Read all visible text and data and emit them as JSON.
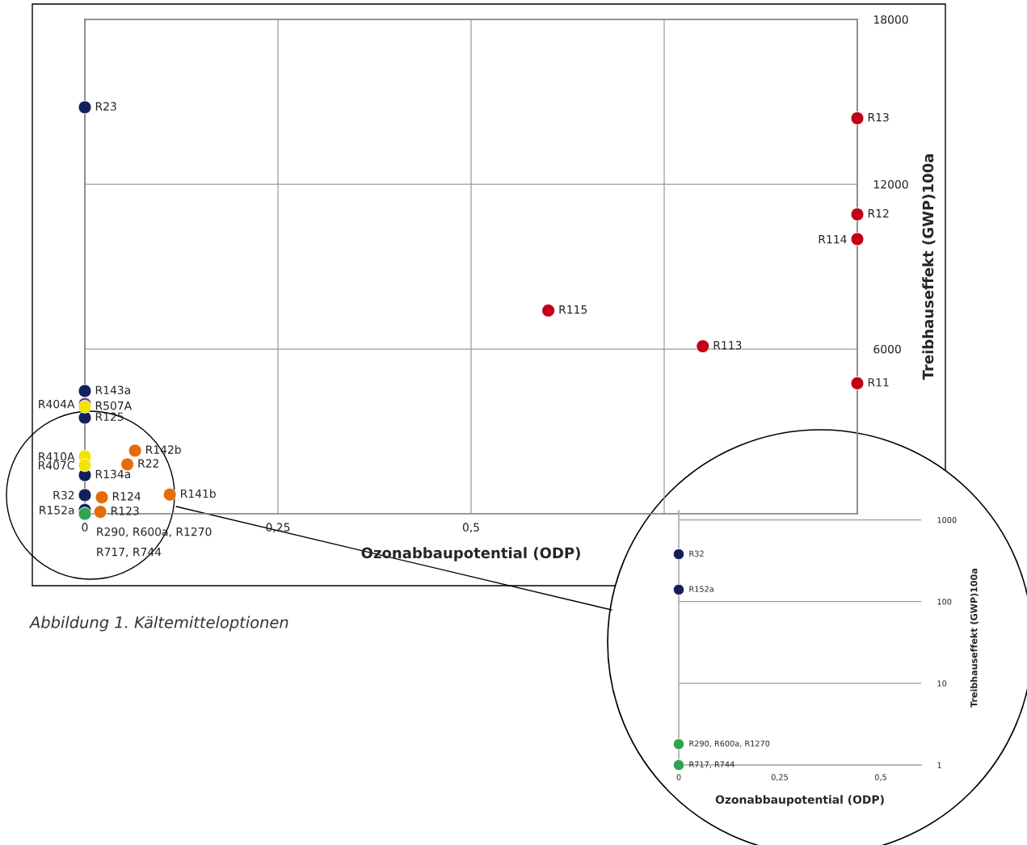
{
  "chart_data": [
    {
      "type": "scatter",
      "xlabel": "Ozonabbaupotential (ODP)",
      "ylabel": "Treibhauseffekt (GWP)100a",
      "xlim": [
        0,
        1
      ],
      "ylim": [
        0,
        18000
      ],
      "xticks": [
        0,
        {
          "value": 0.25,
          "label": "0,25"
        },
        {
          "value": 0.5,
          "label": "0,5"
        },
        {
          "value": 0.75,
          "label": null
        },
        {
          "value": 1,
          "label": null
        }
      ],
      "yticks": [
        {
          "value": 0,
          "label": null
        },
        6000,
        12000,
        18000
      ],
      "grid": true,
      "marker": "circle",
      "legend": false,
      "annotations": [
        "Abbildung 1. Kältemitteloptionen"
      ],
      "series": [
        {
          "color": "#13205a",
          "x": [
            0,
            0,
            0,
            0,
            0,
            0
          ],
          "values": [
            14800,
            4470,
            3500,
            1410,
            680,
            140
          ],
          "value_labels": [
            "R23",
            "R143a",
            "R125",
            "R134a",
            "R32",
            "R152a"
          ]
        },
        {
          "color": "#6a3a9a",
          "x": [
            0
          ],
          "values": [
            4000
          ],
          "value_labels": [
            "R404A"
          ]
        },
        {
          "color": "#f2e500",
          "x": [
            0,
            0,
            0
          ],
          "values": [
            3900,
            2090,
            1770
          ],
          "value_labels": [
            "R507A",
            "R410A",
            "R407C"
          ]
        },
        {
          "color": "#e46c0a",
          "x": [
            0.065,
            0.055,
            0.022,
            0.02,
            0.11
          ],
          "values": [
            2300,
            1800,
            600,
            70,
            700
          ],
          "value_labels": [
            "R142b",
            "R22",
            "R124",
            "R123",
            "R141b"
          ]
        },
        {
          "color": "#c00018",
          "x": [
            1,
            1,
            1,
            0.6,
            0.8,
            1
          ],
          "values": [
            14400,
            10900,
            10000,
            7400,
            6100,
            4750
          ],
          "value_labels": [
            "R13",
            "R12",
            "R114",
            "R115",
            "R113",
            "R11"
          ]
        },
        {
          "color": "#2ea44f",
          "x": [
            0,
            0
          ],
          "values": [
            0,
            0
          ],
          "value_labels": [
            "R290, R600a, R1270",
            "R717, R744"
          ]
        }
      ]
    },
    {
      "type": "scatter",
      "xlabel": "Ozonabbaupotential (ODP)",
      "ylabel": "Treibhauseffekt (GWP)100a",
      "log": "y",
      "xlim": [
        0,
        0.6
      ],
      "ylim": [
        1,
        1300
      ],
      "xticks": [
        0,
        {
          "value": 0.25,
          "label": "0,25"
        },
        {
          "value": 0.5,
          "label": "0,5"
        }
      ],
      "yticks": [
        1,
        10,
        100,
        1000
      ],
      "grid": "y",
      "marker": "circle",
      "legend": false,
      "series": [
        {
          "color": "#13205a",
          "x": [
            0,
            0
          ],
          "values": [
            380,
            140
          ],
          "value_labels": [
            "R32",
            "R152a"
          ]
        },
        {
          "color": "#2ea44f",
          "x": [
            0,
            0
          ],
          "values": [
            1.8,
            1
          ],
          "value_labels": [
            "R290, R600a, R1270",
            "R717, R744"
          ]
        }
      ]
    }
  ]
}
